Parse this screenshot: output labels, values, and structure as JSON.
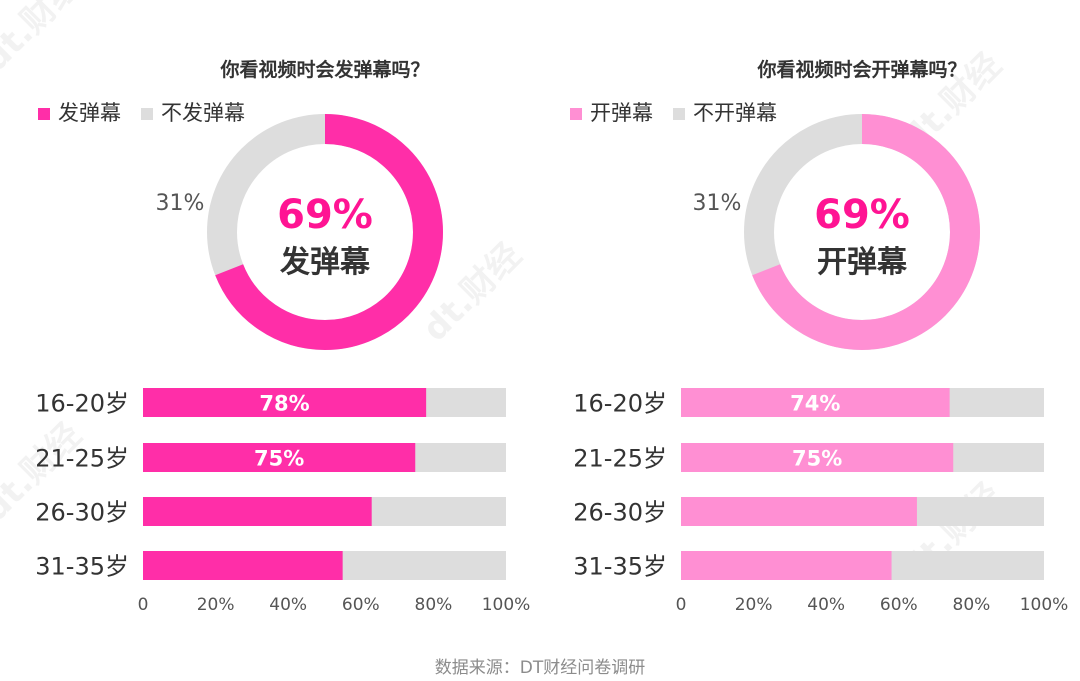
{
  "chart_data": [
    {
      "type": "pie",
      "title": "你看视频时会发弹幕吗？",
      "legend": [
        "发弹幕",
        "不发弹幕"
      ],
      "slices": [
        {
          "name": "发弹幕",
          "value": 69
        },
        {
          "name": "不发弹幕",
          "value": 31
        }
      ],
      "center_value": "69%",
      "center_label": "发弹幕",
      "side_label": "31%",
      "colors": {
        "primary": "#ff2ea8",
        "rest": "#dddddd"
      }
    },
    {
      "type": "bar",
      "orientation": "horizontal",
      "stacked_to": 100,
      "categories": [
        "16-20岁",
        "21-25岁",
        "26-30岁",
        "31-35岁"
      ],
      "values": [
        78,
        75,
        63,
        55
      ],
      "data_labels": [
        "78%",
        "75%",
        "",
        ""
      ],
      "xlim": [
        0,
        100
      ],
      "xticks": [
        "0",
        "20%",
        "40%",
        "60%",
        "80%",
        "100%"
      ],
      "colors": {
        "primary": "#ff2ea8",
        "rest": "#dddddd"
      }
    },
    {
      "type": "pie",
      "title": "你看视频时会开弹幕吗？",
      "legend": [
        "开弹幕",
        "不开弹幕"
      ],
      "slices": [
        {
          "name": "开弹幕",
          "value": 69
        },
        {
          "name": "不开弹幕",
          "value": 31
        }
      ],
      "center_value": "69%",
      "center_label": "开弹幕",
      "side_label": "31%",
      "colors": {
        "primary": "#ff8fd3",
        "rest": "#dddddd"
      }
    },
    {
      "type": "bar",
      "orientation": "horizontal",
      "stacked_to": 100,
      "categories": [
        "16-20岁",
        "21-25岁",
        "26-30岁",
        "31-35岁"
      ],
      "values": [
        74,
        75,
        65,
        58
      ],
      "data_labels": [
        "74%",
        "75%",
        "",
        ""
      ],
      "xlim": [
        0,
        100
      ],
      "xticks": [
        "0",
        "20%",
        "40%",
        "60%",
        "80%",
        "100%"
      ],
      "colors": {
        "primary": "#ff8fd3",
        "rest": "#dddddd"
      }
    }
  ],
  "source": "数据来源：DT财经问卷调研",
  "watermark": "dt.财经"
}
